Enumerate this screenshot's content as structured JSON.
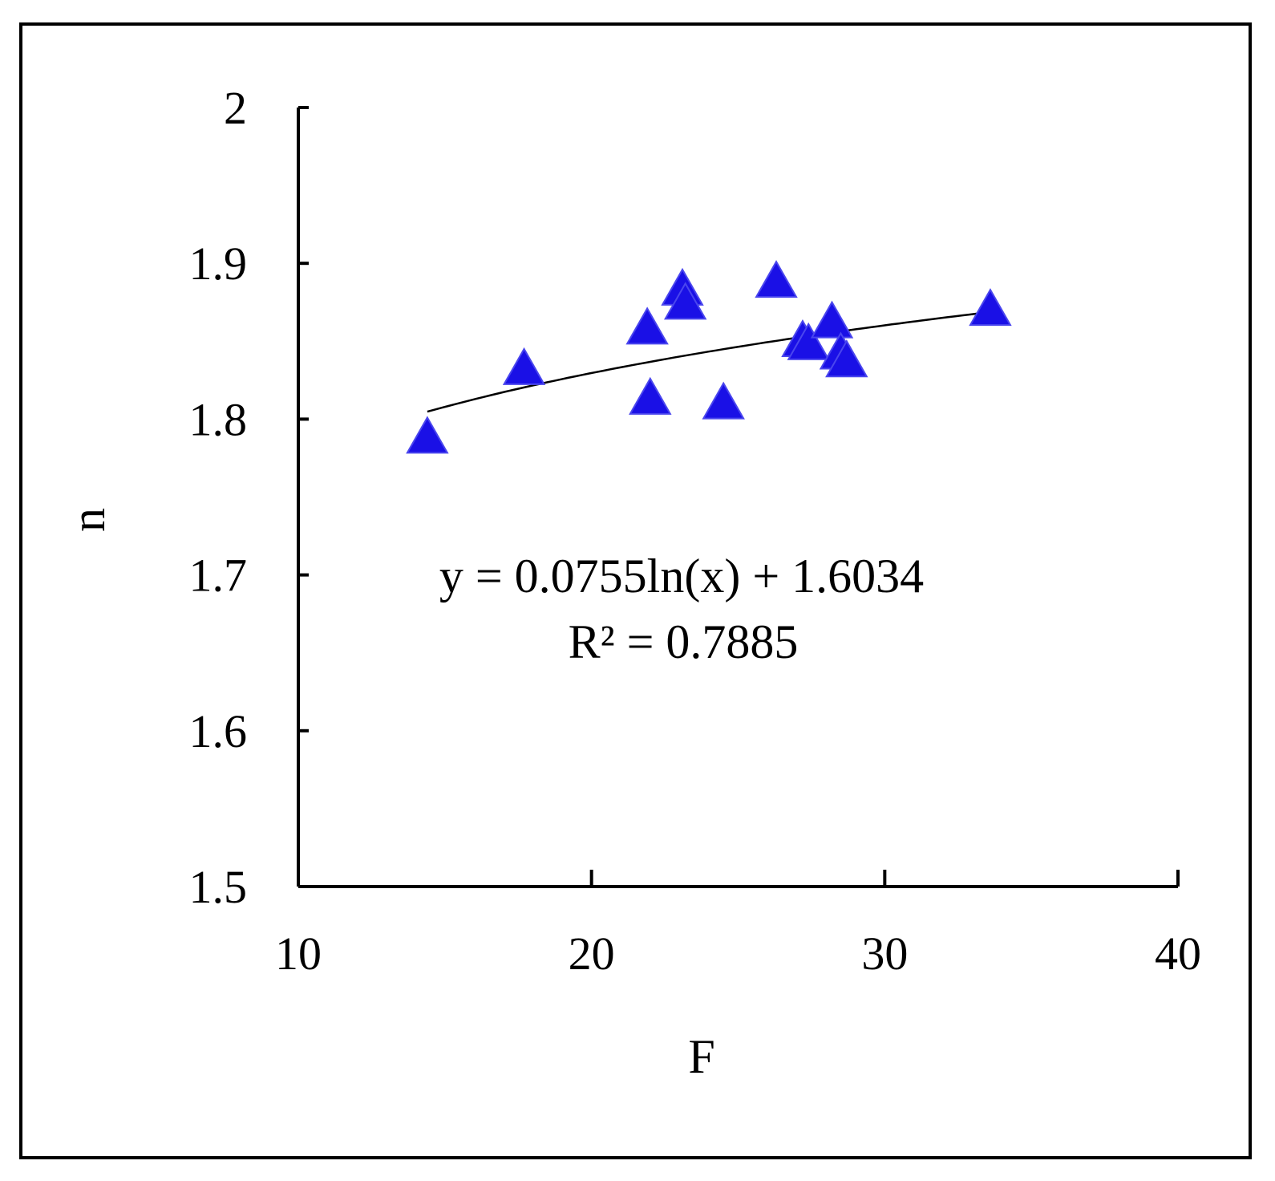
{
  "chart_data": {
    "type": "scatter",
    "xlabel": "F",
    "ylabel": "n",
    "xlim": [
      10,
      40
    ],
    "ylim": [
      1.5,
      2.0
    ],
    "x_ticks": [
      10,
      20,
      30,
      40
    ],
    "x_tick_labels": [
      "10",
      "20",
      "30",
      "40"
    ],
    "y_ticks": [
      1.5,
      1.6,
      1.7,
      1.8,
      1.9,
      2.0
    ],
    "y_tick_labels": [
      "1.5",
      "1.6",
      "1.7",
      "1.8",
      "1.9",
      "2"
    ],
    "grid": false,
    "marker": "triangle",
    "marker_color": "#1a10e6",
    "series": [
      {
        "points": [
          {
            "x": 14.4,
            "y": 1.787
          },
          {
            "x": 17.7,
            "y": 1.831
          },
          {
            "x": 21.9,
            "y": 1.857
          },
          {
            "x": 22.0,
            "y": 1.812
          },
          {
            "x": 23.1,
            "y": 1.882
          },
          {
            "x": 23.2,
            "y": 1.873
          },
          {
            "x": 24.5,
            "y": 1.809
          },
          {
            "x": 26.3,
            "y": 1.887
          },
          {
            "x": 27.2,
            "y": 1.849
          },
          {
            "x": 27.4,
            "y": 1.847
          },
          {
            "x": 28.2,
            "y": 1.861
          },
          {
            "x": 28.5,
            "y": 1.841
          },
          {
            "x": 28.7,
            "y": 1.836
          },
          {
            "x": 33.6,
            "y": 1.869
          }
        ]
      }
    ],
    "trendline": {
      "type": "logarithmic",
      "a": 0.0755,
      "b": 1.6034,
      "x_range": [
        14.4,
        33.6
      ],
      "color": "#000000"
    },
    "annotations": {
      "equation": "y = 0.0755ln(x) + 1.6034",
      "r_squared": "R² = 0.7885"
    }
  }
}
